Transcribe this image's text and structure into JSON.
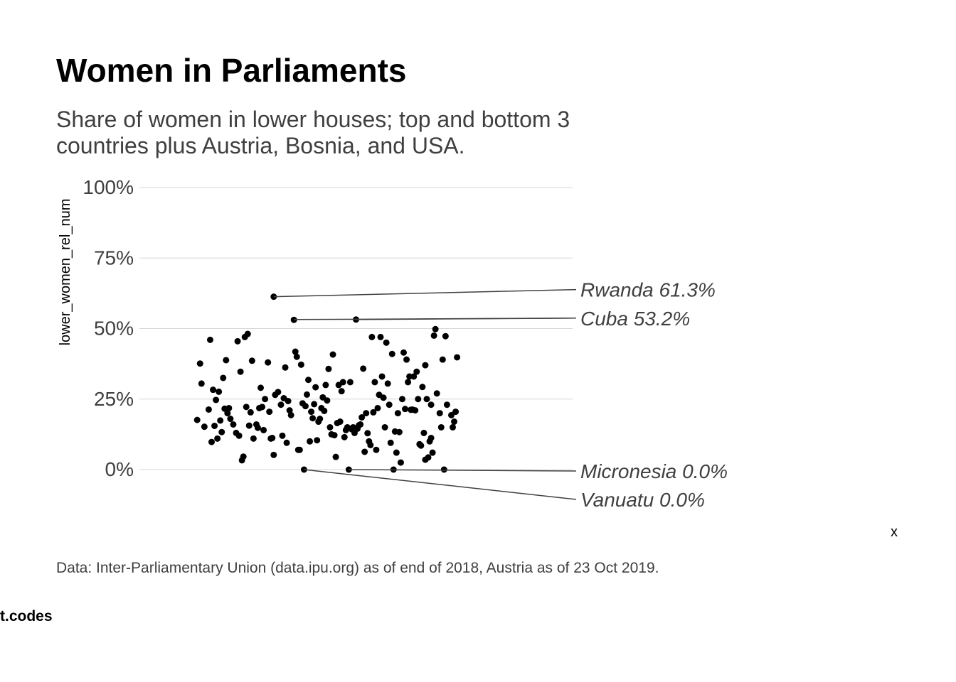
{
  "title": "Women in Parliaments",
  "subtitle": "Share of women in lower houses; top and bottom 3 countries plus Austria, Bosnia, and USA.",
  "caption": "Data: Inter-Parliamentary Union (data.ipu.org) as of end of 2018, Austria as of 23 Oct 2019.",
  "credit": "t.codes",
  "chart_data": {
    "type": "scatter",
    "xlabel": "x",
    "ylabel": "lower_women_rel_num",
    "ylim": [
      0,
      1
    ],
    "yticks": [
      0,
      0.25,
      0.5,
      0.75,
      1.0
    ],
    "ytick_labels": [
      "0%",
      "25%",
      "50%",
      "75%",
      "100%"
    ],
    "grid": true,
    "point_color": "#000000",
    "label_color": "#404040",
    "annotations": [
      {
        "label": "Rwanda 61.3%",
        "y": 0.613
      },
      {
        "label": "Cuba 53.2%",
        "y": 0.532
      },
      {
        "label": "Micronesia  0.0%",
        "y": 0.0
      },
      {
        "label": "Vanuatu 0.0%",
        "y": 0.0
      }
    ],
    "points": [
      [
        0.92,
        0.376
      ],
      [
        0.93,
        0.305
      ],
      [
        0.9,
        0.176
      ],
      [
        0.95,
        0.152
      ],
      [
        0.98,
        0.213
      ],
      [
        0.99,
        0.46
      ],
      [
        1.0,
        0.098
      ],
      [
        1.01,
        0.283
      ],
      [
        1.02,
        0.155
      ],
      [
        1.03,
        0.247
      ],
      [
        1.04,
        0.11
      ],
      [
        1.05,
        0.276
      ],
      [
        1.06,
        0.174
      ],
      [
        1.07,
        0.133
      ],
      [
        1.08,
        0.325
      ],
      [
        1.09,
        0.216
      ],
      [
        1.1,
        0.388
      ],
      [
        1.11,
        0.2
      ],
      [
        1.12,
        0.218
      ],
      [
        1.13,
        0.18
      ],
      [
        1.15,
        0.16
      ],
      [
        1.17,
        0.13
      ],
      [
        1.18,
        0.455
      ],
      [
        1.19,
        0.12
      ],
      [
        1.2,
        0.347
      ],
      [
        1.21,
        0.033
      ],
      [
        1.22,
        0.046
      ],
      [
        1.23,
        0.47
      ],
      [
        1.24,
        0.222
      ],
      [
        1.25,
        0.481
      ],
      [
        1.26,
        0.156
      ],
      [
        1.27,
        0.203
      ],
      [
        1.28,
        0.386
      ],
      [
        1.29,
        0.11
      ],
      [
        1.31,
        0.16
      ],
      [
        1.32,
        0.148
      ],
      [
        1.33,
        0.218
      ],
      [
        1.34,
        0.29
      ],
      [
        1.35,
        0.222
      ],
      [
        1.36,
        0.14
      ],
      [
        1.37,
        0.25
      ],
      [
        1.39,
        0.38
      ],
      [
        1.4,
        0.205
      ],
      [
        1.41,
        0.11
      ],
      [
        1.42,
        0.112
      ],
      [
        1.43,
        0.052
      ],
      [
        1.44,
        0.265
      ],
      [
        1.46,
        0.275
      ],
      [
        1.48,
        0.23
      ],
      [
        1.49,
        0.12
      ],
      [
        1.5,
        0.253
      ],
      [
        1.51,
        0.362
      ],
      [
        1.52,
        0.095
      ],
      [
        1.53,
        0.243
      ],
      [
        1.54,
        0.21
      ],
      [
        1.55,
        0.193
      ],
      [
        1.57,
        0.531
      ],
      [
        1.58,
        0.418
      ],
      [
        1.59,
        0.4
      ],
      [
        1.6,
        0.07
      ],
      [
        1.61,
        0.07
      ],
      [
        1.62,
        0.372
      ],
      [
        1.63,
        0.235
      ],
      [
        1.64,
        0.0
      ],
      [
        1.65,
        0.225
      ],
      [
        1.66,
        0.266
      ],
      [
        1.67,
        0.318
      ],
      [
        1.68,
        0.1
      ],
      [
        1.69,
        0.205
      ],
      [
        1.7,
        0.182
      ],
      [
        1.71,
        0.232
      ],
      [
        1.72,
        0.292
      ],
      [
        1.73,
        0.104
      ],
      [
        1.74,
        0.17
      ],
      [
        1.75,
        0.18
      ],
      [
        1.76,
        0.218
      ],
      [
        1.77,
        0.256
      ],
      [
        1.78,
        0.208
      ],
      [
        1.79,
        0.3
      ],
      [
        1.8,
        0.245
      ],
      [
        1.81,
        0.357
      ],
      [
        1.82,
        0.15
      ],
      [
        1.83,
        0.125
      ],
      [
        1.84,
        0.408
      ],
      [
        1.85,
        0.122
      ],
      [
        1.86,
        0.045
      ],
      [
        1.87,
        0.165
      ],
      [
        1.88,
        0.3
      ],
      [
        1.89,
        0.17
      ],
      [
        1.9,
        0.278
      ],
      [
        1.91,
        0.31
      ],
      [
        1.92,
        0.115
      ],
      [
        1.93,
        0.14
      ],
      [
        1.94,
        0.15
      ],
      [
        1.95,
        0.0
      ],
      [
        1.96,
        0.31
      ],
      [
        1.97,
        0.143
      ],
      [
        1.98,
        0.15
      ],
      [
        1.99,
        0.13
      ],
      [
        2.0,
        0.532
      ],
      [
        2.01,
        0.145
      ],
      [
        2.02,
        0.157
      ],
      [
        2.03,
        0.16
      ],
      [
        2.04,
        0.185
      ],
      [
        2.05,
        0.358
      ],
      [
        2.06,
        0.063
      ],
      [
        2.07,
        0.2
      ],
      [
        2.08,
        0.129
      ],
      [
        2.09,
        0.1
      ],
      [
        2.1,
        0.087
      ],
      [
        2.11,
        0.47
      ],
      [
        2.12,
        0.203
      ],
      [
        2.13,
        0.31
      ],
      [
        2.14,
        0.07
      ],
      [
        2.15,
        0.218
      ],
      [
        2.16,
        0.265
      ],
      [
        2.17,
        0.47
      ],
      [
        2.18,
        0.33
      ],
      [
        2.19,
        0.255
      ],
      [
        2.2,
        0.15
      ],
      [
        2.21,
        0.45
      ],
      [
        2.22,
        0.305
      ],
      [
        2.23,
        0.23
      ],
      [
        2.24,
        0.095
      ],
      [
        2.25,
        0.41
      ],
      [
        2.26,
        0.0
      ],
      [
        2.27,
        0.135
      ],
      [
        2.28,
        0.06
      ],
      [
        2.29,
        0.2
      ],
      [
        2.3,
        0.133
      ],
      [
        2.31,
        0.025
      ],
      [
        2.32,
        0.25
      ],
      [
        2.33,
        0.415
      ],
      [
        2.34,
        0.215
      ],
      [
        2.35,
        0.39
      ],
      [
        2.36,
        0.31
      ],
      [
        2.37,
        0.33
      ],
      [
        2.38,
        0.212
      ],
      [
        2.39,
        0.213
      ],
      [
        2.4,
        0.33
      ],
      [
        2.41,
        0.21
      ],
      [
        2.42,
        0.347
      ],
      [
        2.43,
        0.25
      ],
      [
        2.44,
        0.09
      ],
      [
        2.45,
        0.085
      ],
      [
        2.46,
        0.293
      ],
      [
        2.47,
        0.13
      ],
      [
        2.48,
        0.37
      ],
      [
        2.49,
        0.25
      ],
      [
        2.5,
        0.043
      ],
      [
        2.51,
        0.1
      ],
      [
        2.52,
        0.23
      ],
      [
        2.53,
        0.06
      ],
      [
        2.54,
        0.475
      ],
      [
        2.55,
        0.498
      ],
      [
        2.56,
        0.27
      ],
      [
        2.58,
        0.2
      ],
      [
        2.59,
        0.15
      ],
      [
        2.6,
        0.39
      ],
      [
        2.61,
        0.0
      ],
      [
        2.62,
        0.473
      ],
      [
        2.63,
        0.23
      ],
      [
        2.66,
        0.193
      ],
      [
        2.67,
        0.15
      ],
      [
        2.68,
        0.17
      ],
      [
        2.69,
        0.205
      ],
      [
        2.7,
        0.398
      ],
      [
        1.43,
        0.613
      ],
      [
        2.48,
        0.035
      ],
      [
        2.52,
        0.112
      ]
    ]
  }
}
